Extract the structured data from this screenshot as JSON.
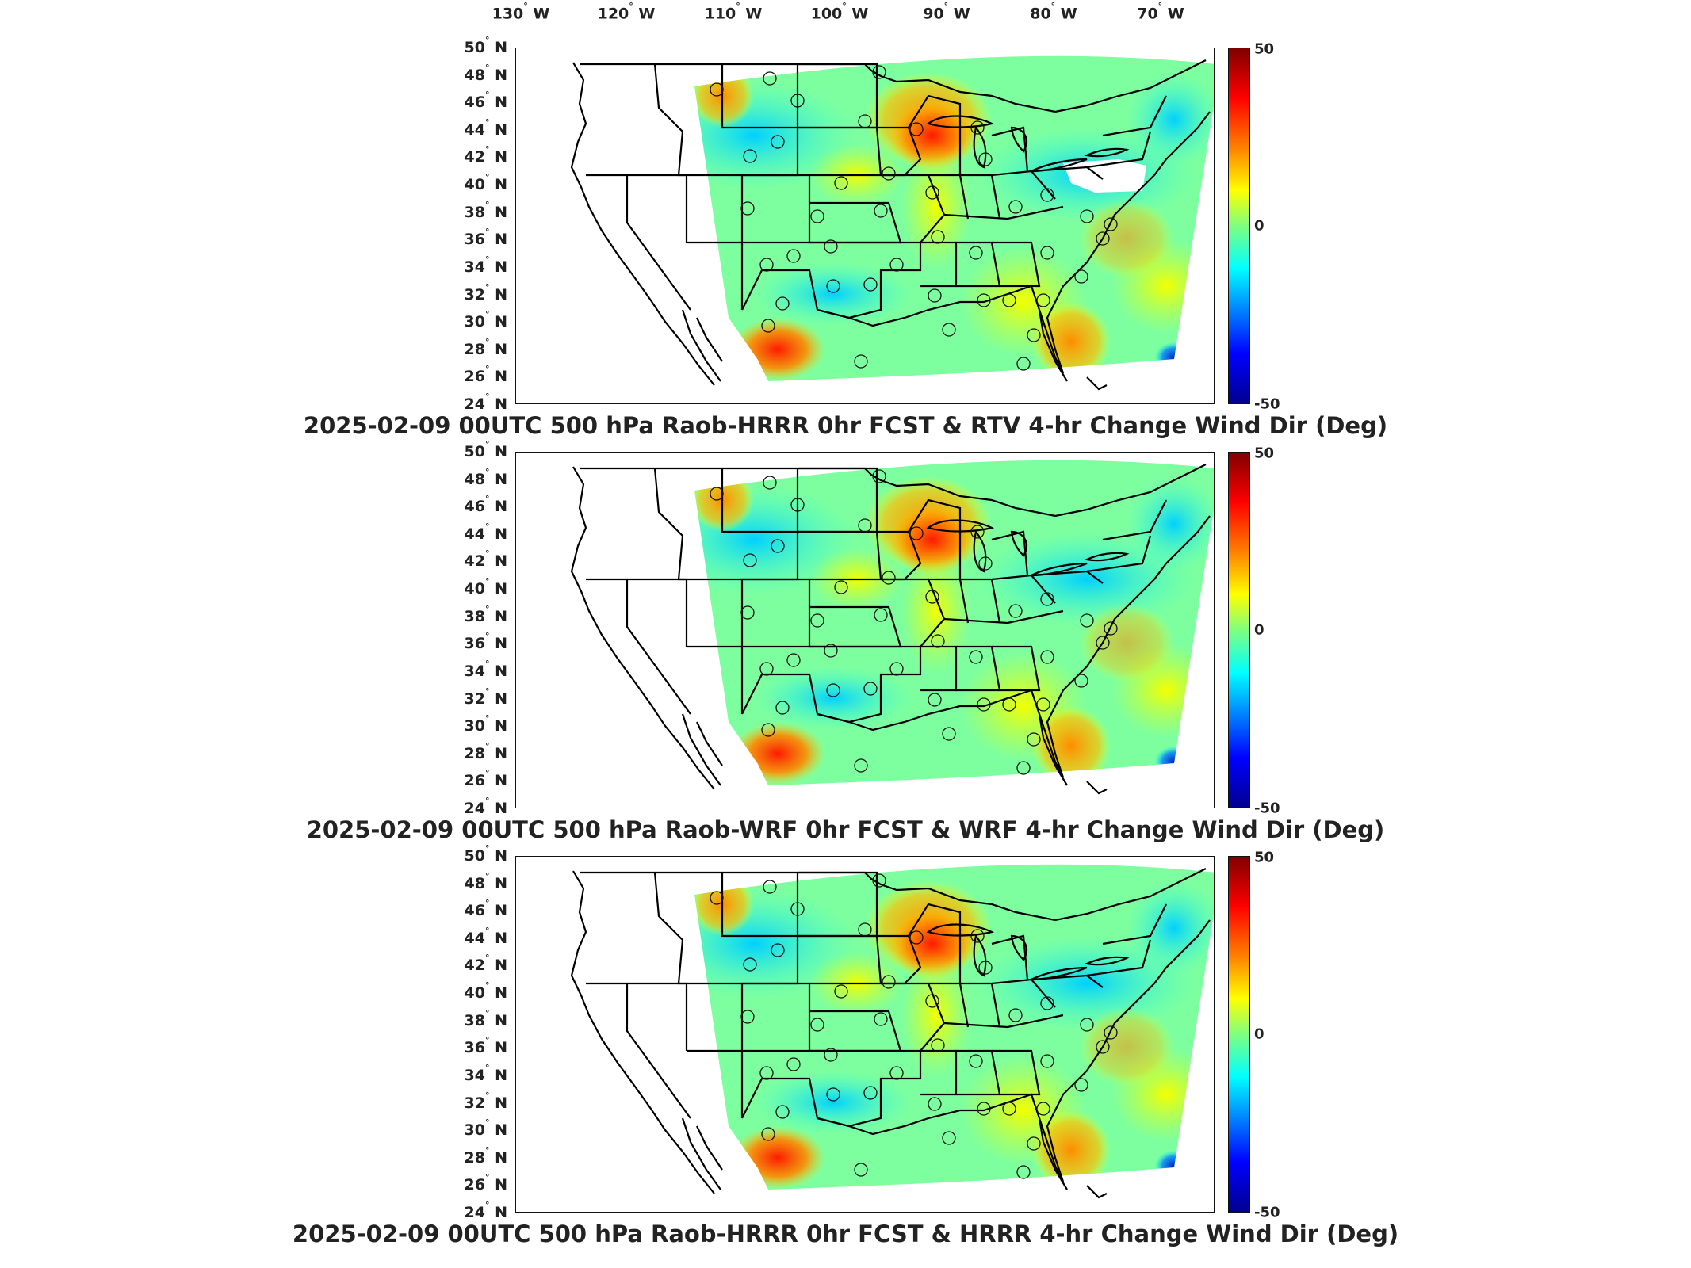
{
  "lon_labels": [
    {
      "deg": "130",
      "hemi": "W"
    },
    {
      "deg": "120",
      "hemi": "W"
    },
    {
      "deg": "110",
      "hemi": "W"
    },
    {
      "deg": "100",
      "hemi": "W"
    },
    {
      "deg": "90",
      "hemi": "W"
    },
    {
      "deg": "80",
      "hemi": "W"
    },
    {
      "deg": "70",
      "hemi": "W"
    }
  ],
  "lat_labels": [
    {
      "deg": "50",
      "hemi": "N"
    },
    {
      "deg": "48",
      "hemi": "N"
    },
    {
      "deg": "46",
      "hemi": "N"
    },
    {
      "deg": "44",
      "hemi": "N"
    },
    {
      "deg": "42",
      "hemi": "N"
    },
    {
      "deg": "40",
      "hemi": "N"
    },
    {
      "deg": "38",
      "hemi": "N"
    },
    {
      "deg": "36",
      "hemi": "N"
    },
    {
      "deg": "34",
      "hemi": "N"
    },
    {
      "deg": "32",
      "hemi": "N"
    },
    {
      "deg": "30",
      "hemi": "N"
    },
    {
      "deg": "28",
      "hemi": "N"
    },
    {
      "deg": "26",
      "hemi": "N"
    },
    {
      "deg": "24",
      "hemi": "N"
    }
  ],
  "colorbar": {
    "max_label": "50",
    "mid_label": "0",
    "min_label": "-50",
    "colors": [
      "#800000",
      "#ff0000",
      "#ff8000",
      "#ffff00",
      "#7fff7f",
      "#00ffff",
      "#0080ff",
      "#0000ff",
      "#00008f"
    ]
  },
  "panels": [
    {
      "title": "2025-02-09 00UTC 500 hPa Raob-HRRR 0hr FCST & RTV 4-hr Change Wind Dir (Deg)"
    },
    {
      "title": "2025-02-09 00UTC 500 hPa Raob-WRF 0hr FCST & WRF 4-hr Change Wind Dir (Deg)"
    },
    {
      "title": "2025-02-09 00UTC 500 hPa Raob-HRRR 0hr FCST & HRRR 4-hr Change Wind Dir (Deg)"
    }
  ]
}
